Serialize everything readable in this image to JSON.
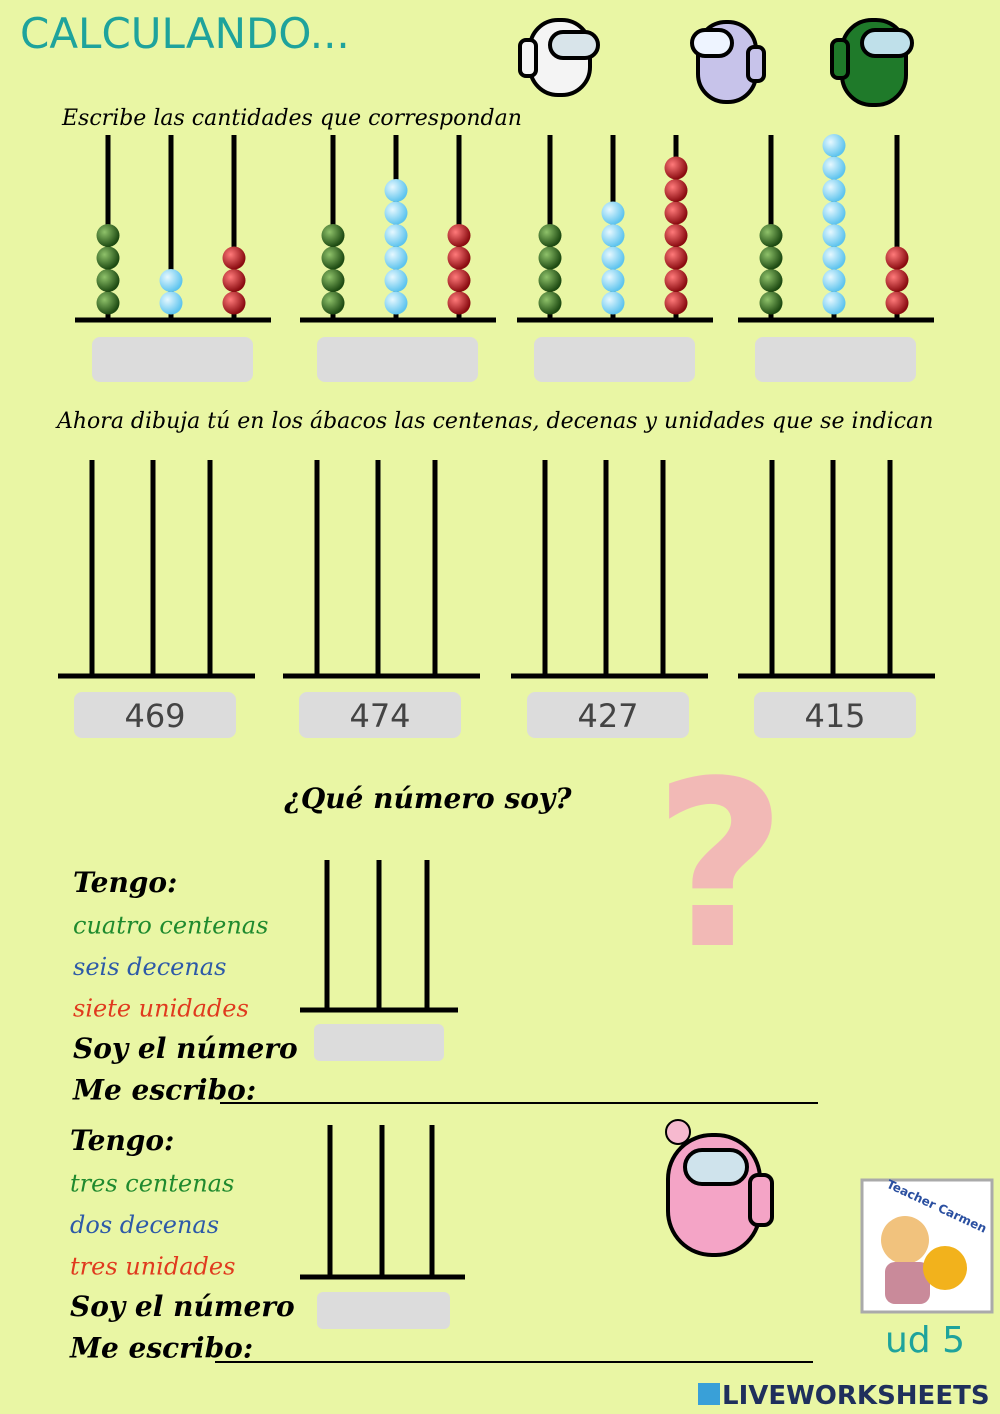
{
  "header": {
    "title": "CALCULANDO..."
  },
  "section1": {
    "instruction": "Escribe las cantidades que correspondan",
    "abacuses": [
      {
        "hundreds": 4,
        "tens": 2,
        "units": 3
      },
      {
        "hundreds": 4,
        "tens": 6,
        "units": 4
      },
      {
        "hundreds": 4,
        "tens": 5,
        "units": 7
      },
      {
        "hundreds": 4,
        "tens": 8,
        "units": 3
      }
    ]
  },
  "section2": {
    "instruction": "Ahora dibuja tú en los ábacos las centenas, decenas y unidades que se indican",
    "numbers": [
      469,
      474,
      427,
      415
    ]
  },
  "section3": {
    "title": "¿Qué número soy?",
    "riddles": [
      {
        "heading": "Tengo:",
        "hundreds": "cuatro centenas",
        "tens": "seis decenas",
        "units": "siete unidades",
        "number_prompt": "Soy el número",
        "write_prompt": "Me escribo:"
      },
      {
        "heading": "Tengo:",
        "hundreds": "tres centenas",
        "tens": "dos decenas",
        "units": "tres unidades",
        "number_prompt": "Soy el número",
        "write_prompt": "Me escribo:"
      }
    ]
  },
  "footer": {
    "badge": "Teacher Carmen",
    "unit": "ud 5",
    "brand": "LIVEWORKSHEETS"
  }
}
